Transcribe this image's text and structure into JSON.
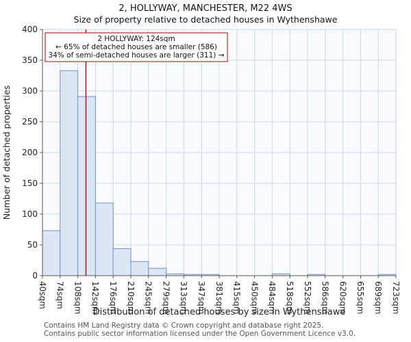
{
  "title": "2, HOLLYWAY, MANCHESTER, M22 4WS",
  "subtitle": "Size of property relative to detached houses in Wythenshawe",
  "chart_data": {
    "type": "bar",
    "title": "2, HOLLYWAY, MANCHESTER, M22 4WS",
    "subtitle": "Size of property relative to detached houses in Wythenshawe",
    "xlabel": "Distribution of detached houses by size in Wythenshawe",
    "ylabel": "Number of detached properties",
    "ylim": [
      0,
      400
    ],
    "ytick_step": 50,
    "grid": true,
    "bin_edges_sqm": [
      40,
      74,
      108,
      142,
      176,
      210,
      245,
      279,
      313,
      347,
      381,
      415,
      450,
      484,
      518,
      552,
      586,
      620,
      655,
      689,
      723
    ],
    "bin_labels": [
      "40sqm",
      "74sqm",
      "108sqm",
      "142sqm",
      "176sqm",
      "210sqm",
      "245sqm",
      "279sqm",
      "313sqm",
      "347sqm",
      "381sqm",
      "415sqm",
      "450sqm",
      "484sqm",
      "518sqm",
      "552sqm",
      "586sqm",
      "620sqm",
      "655sqm",
      "689sqm",
      "723sqm"
    ],
    "values": [
      73,
      333,
      291,
      118,
      44,
      23,
      12,
      3,
      2,
      2,
      0,
      0,
      0,
      3,
      0,
      2,
      0,
      0,
      0,
      2
    ],
    "marker": {
      "value_sqm": 124,
      "label": "2 HOLLYWAY: 124sqm",
      "line1": "← 65% of detached houses are smaller (586)",
      "line2": "34% of semi-detached houses are larger (311) →",
      "color": "#bb0000"
    },
    "colors": {
      "bar_fill": "#dbe6f5",
      "bar_stroke": "#7191c4",
      "grid": "#ccd6e8",
      "plot_bg": "#f8fafd",
      "axis": "#555555",
      "text": "#222222"
    }
  },
  "footer": {
    "line1": "Contains HM Land Registry data © Crown copyright and database right 2025.",
    "line2": "Contains public sector information licensed under the Open Government Licence v3.0."
  }
}
